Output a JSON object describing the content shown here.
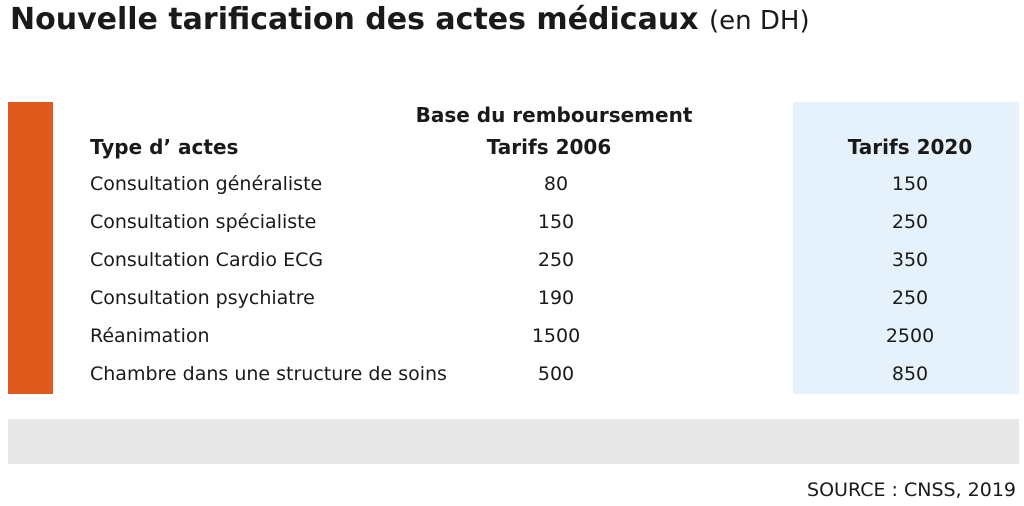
{
  "header": {
    "title": "Nouvelle tarification des actes médicaux",
    "unit": "(en DH)"
  },
  "table": {
    "group_header": "Base du remboursement",
    "columns": [
      "Type d’ actes",
      "Tarifs 2006",
      "Tarifs 2020"
    ],
    "rows": [
      [
        "Consultation généraliste",
        "80",
        "150"
      ],
      [
        "Consultation spécialiste",
        "150",
        "250"
      ],
      [
        "Consultation Cardio ECG",
        "250",
        "350"
      ],
      [
        "Consultation psychiatre",
        "190",
        "250"
      ],
      [
        "Réanimation",
        "1500",
        "2500"
      ],
      [
        "Chambre dans une structure de soins",
        "500",
        "850"
      ]
    ]
  },
  "footer": {
    "source": "SOURCE : CNSS, 2019"
  }
}
